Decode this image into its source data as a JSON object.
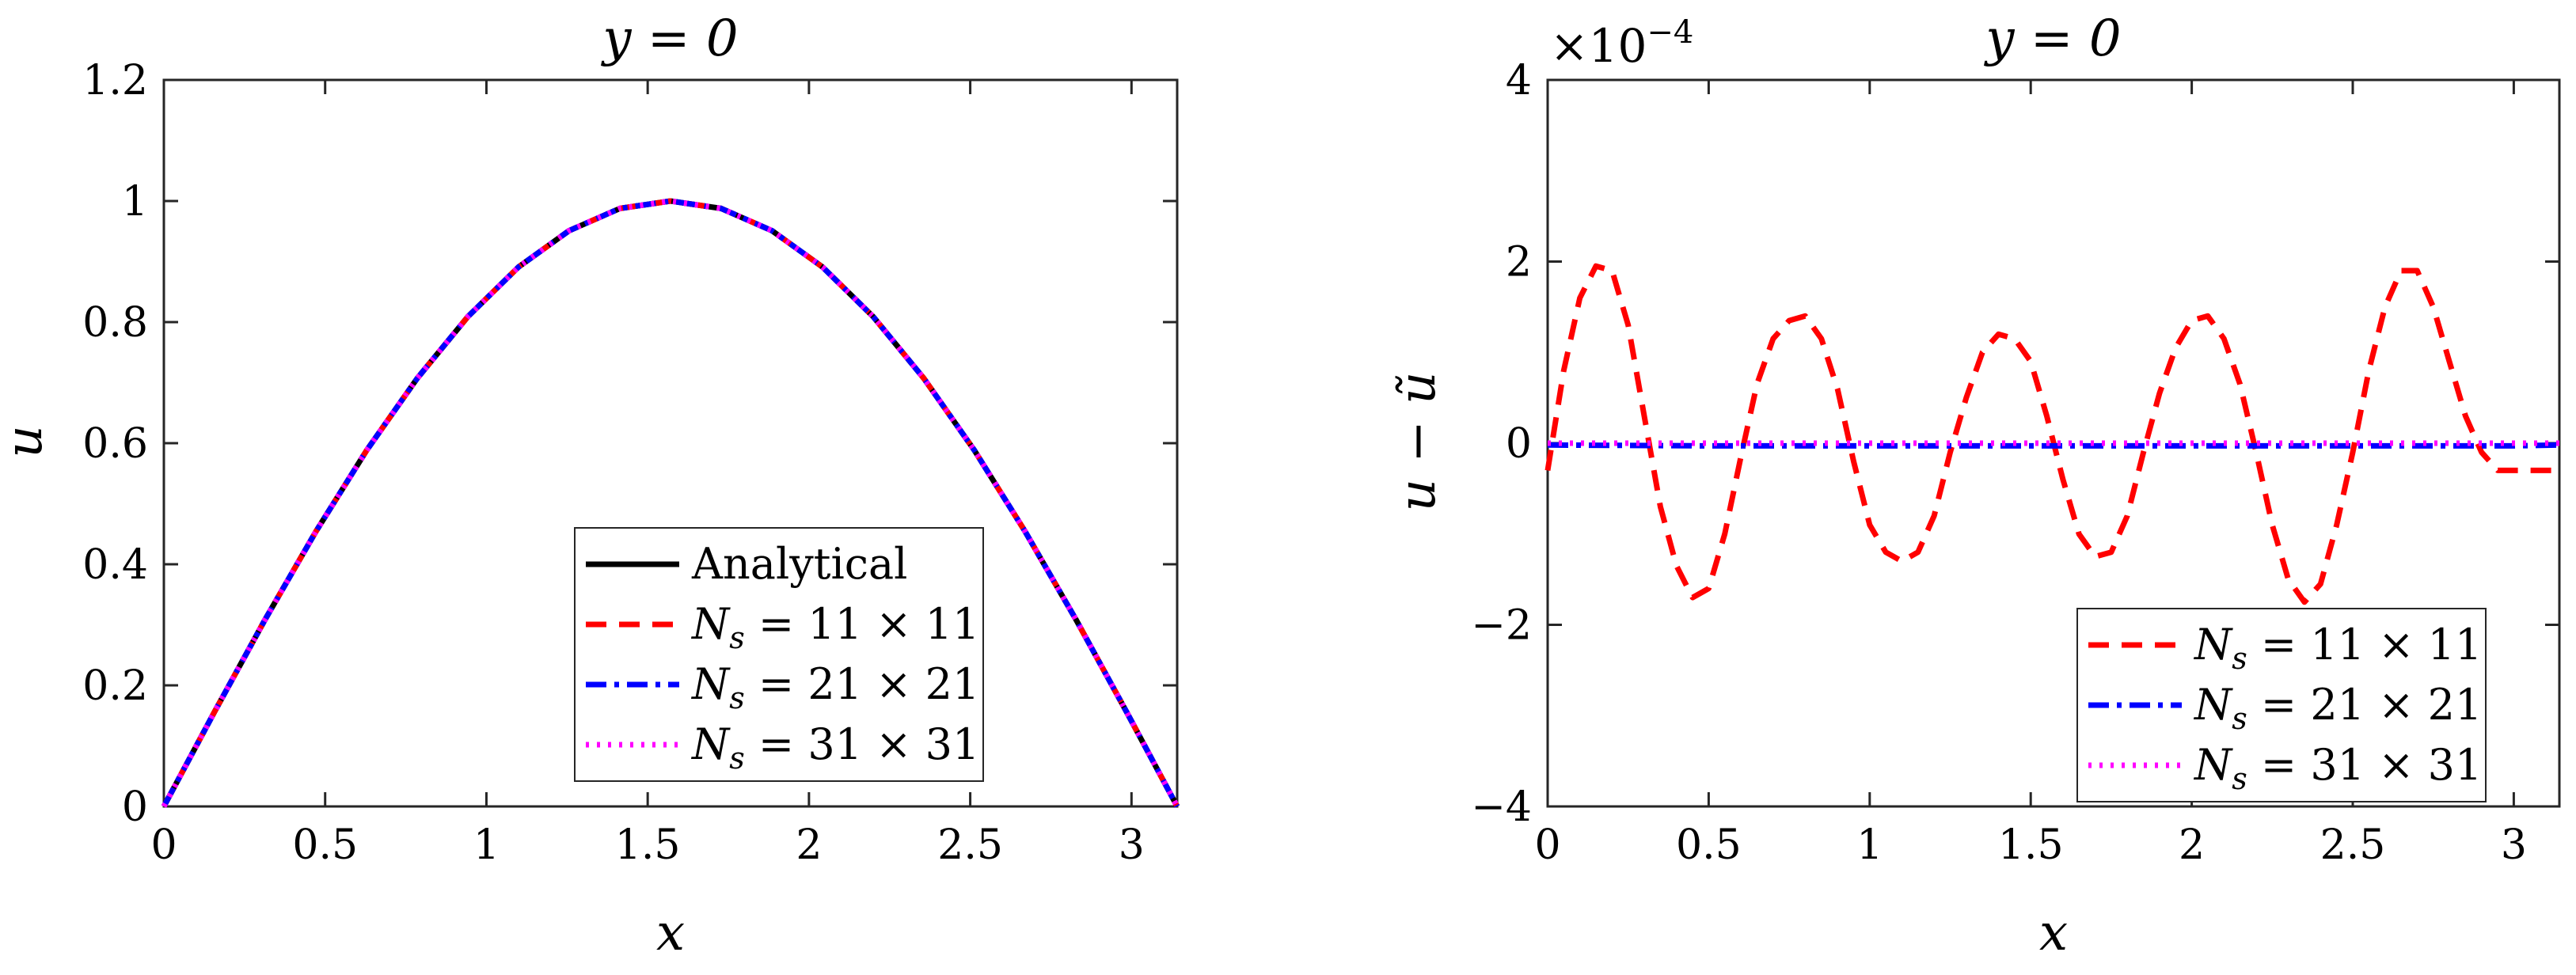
{
  "chart_data": [
    {
      "type": "line",
      "title": "y = 0",
      "xlabel": "x",
      "ylabel": "u",
      "xlim": [
        0,
        3.14159
      ],
      "ylim": [
        0,
        1.2
      ],
      "xticks": [
        0,
        0.5,
        1,
        1.5,
        2,
        2.5,
        3
      ],
      "xtick_labels": [
        "0",
        "0.5",
        "1",
        "1.5",
        "2",
        "2.5",
        "3"
      ],
      "yticks": [
        0,
        0.2,
        0.4,
        0.6,
        0.8,
        1,
        1.2
      ],
      "ytick_labels": [
        "0",
        "0.2",
        "0.4",
        "0.6",
        "0.8",
        "1",
        "1.2"
      ],
      "grid": false,
      "legend_position": "lower-right",
      "x": [
        0,
        0.1571,
        0.3142,
        0.4712,
        0.6283,
        0.7854,
        0.9425,
        1.0996,
        1.2566,
        1.4137,
        1.5708,
        1.7279,
        1.885,
        2.042,
        2.1991,
        2.3562,
        2.5133,
        2.6704,
        2.8274,
        2.9845,
        3.1416
      ],
      "series": [
        {
          "name": "Analytical",
          "color": "#000000",
          "dash": "solid",
          "values": [
            0,
            0.1564,
            0.309,
            0.454,
            0.5878,
            0.7071,
            0.809,
            0.891,
            0.9511,
            0.9877,
            1,
            0.9877,
            0.9511,
            0.891,
            0.809,
            0.7071,
            0.5878,
            0.454,
            0.309,
            0.1564,
            0
          ]
        },
        {
          "name": "N_s = 11 × 11",
          "color": "#ff0000",
          "dash": "dashed",
          "values": [
            0,
            0.1564,
            0.309,
            0.454,
            0.5878,
            0.7071,
            0.809,
            0.891,
            0.9511,
            0.9877,
            1,
            0.9877,
            0.9511,
            0.891,
            0.809,
            0.7071,
            0.5878,
            0.454,
            0.309,
            0.1564,
            0
          ]
        },
        {
          "name": "N_s = 21 × 21",
          "color": "#0000ff",
          "dash": "dashdot",
          "values": [
            0,
            0.1564,
            0.309,
            0.454,
            0.5878,
            0.7071,
            0.809,
            0.891,
            0.9511,
            0.9877,
            1,
            0.9877,
            0.9511,
            0.891,
            0.809,
            0.7071,
            0.5878,
            0.454,
            0.309,
            0.1564,
            0
          ]
        },
        {
          "name": "N_s = 31 × 31",
          "color": "#ff00ff",
          "dash": "dotted",
          "values": [
            0,
            0.1564,
            0.309,
            0.454,
            0.5878,
            0.7071,
            0.809,
            0.891,
            0.9511,
            0.9877,
            1,
            0.9877,
            0.9511,
            0.891,
            0.809,
            0.7071,
            0.5878,
            0.454,
            0.309,
            0.1564,
            0
          ]
        }
      ]
    },
    {
      "type": "line",
      "title": "y = 0",
      "xlabel": "x",
      "ylabel": "u − ũ",
      "y_scale_label": "×10",
      "y_scale_exponent": "−4",
      "xlim": [
        0,
        3.14159
      ],
      "ylim": [
        -4,
        4
      ],
      "xticks": [
        0,
        0.5,
        1,
        1.5,
        2,
        2.5,
        3
      ],
      "xtick_labels": [
        "0",
        "0.5",
        "1",
        "1.5",
        "2",
        "2.5",
        "3"
      ],
      "yticks": [
        -4,
        -2,
        0,
        2,
        4
      ],
      "ytick_labels": [
        "−4",
        "−2",
        "0",
        "2",
        "4"
      ],
      "grid": false,
      "legend_position": "lower-right",
      "series": [
        {
          "name": "N_s = 11 × 11",
          "color": "#ff0000",
          "dash": "dashed",
          "x": [
            0,
            0.05,
            0.1,
            0.15,
            0.2,
            0.25,
            0.3,
            0.35,
            0.4,
            0.45,
            0.5,
            0.55,
            0.6,
            0.65,
            0.7,
            0.75,
            0.8,
            0.85,
            0.9,
            0.95,
            1.0,
            1.05,
            1.1,
            1.15,
            1.2,
            1.25,
            1.3,
            1.35,
            1.4,
            1.45,
            1.5,
            1.55,
            1.6,
            1.65,
            1.7,
            1.75,
            1.8,
            1.85,
            1.9,
            1.95,
            2.0,
            2.05,
            2.1,
            2.15,
            2.2,
            2.25,
            2.3,
            2.35,
            2.4,
            2.45,
            2.5,
            2.55,
            2.6,
            2.65,
            2.7,
            2.75,
            2.8,
            2.85,
            2.9,
            2.95,
            3.0,
            3.05,
            3.1,
            3.1416
          ],
          "values": [
            -0.3,
            0.8,
            1.6,
            1.95,
            1.9,
            1.3,
            0.3,
            -0.7,
            -1.35,
            -1.7,
            -1.6,
            -1.0,
            -0.15,
            0.65,
            1.15,
            1.35,
            1.4,
            1.15,
            0.6,
            -0.2,
            -0.9,
            -1.2,
            -1.3,
            -1.2,
            -0.8,
            -0.1,
            0.5,
            1.0,
            1.2,
            1.15,
            0.9,
            0.3,
            -0.4,
            -1.0,
            -1.25,
            -1.2,
            -0.8,
            -0.1,
            0.55,
            1.05,
            1.35,
            1.4,
            1.15,
            0.65,
            -0.1,
            -0.9,
            -1.5,
            -1.75,
            -1.55,
            -0.9,
            -0.1,
            0.8,
            1.5,
            1.9,
            1.9,
            1.5,
            0.9,
            0.3,
            -0.1,
            -0.3,
            -0.3,
            -0.3,
            -0.3,
            -0.3
          ]
        },
        {
          "name": "N_s = 21 × 21",
          "color": "#0000ff",
          "dash": "dashdot",
          "x": [
            0,
            0.5,
            1.0,
            1.5,
            2.0,
            2.5,
            3.0,
            3.1416
          ],
          "values": [
            -0.02,
            -0.03,
            -0.03,
            -0.03,
            -0.03,
            -0.03,
            -0.03,
            -0.02
          ]
        },
        {
          "name": "N_s = 31 × 31",
          "color": "#ff00ff",
          "dash": "dotted",
          "x": [
            0,
            0.5,
            1.0,
            1.5,
            2.0,
            2.5,
            3.0,
            3.1416
          ],
          "values": [
            0,
            0,
            0,
            0,
            0,
            0,
            0,
            0
          ]
        }
      ]
    }
  ]
}
